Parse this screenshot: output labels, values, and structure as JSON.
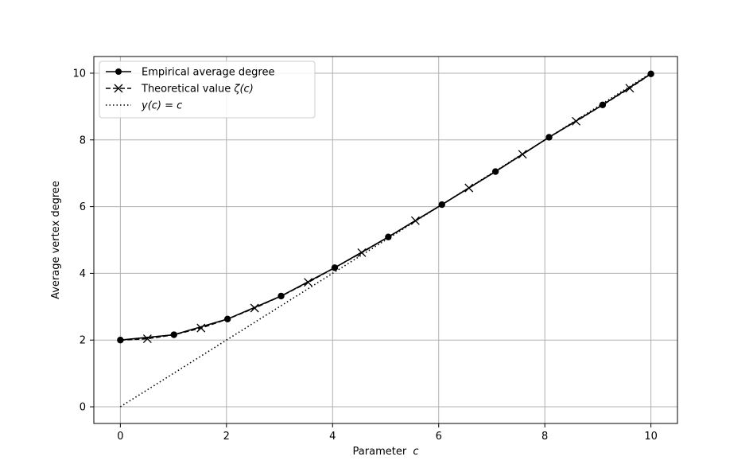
{
  "chart_data": {
    "type": "line",
    "title": "",
    "xlabel": "Parameter",
    "xlabel_var": "c",
    "ylabel": "Average vertex degree",
    "xlim": [
      -0.5,
      10.5
    ],
    "ylim": [
      -0.5,
      10.5
    ],
    "x_ticks": [
      0,
      2,
      4,
      6,
      8,
      10
    ],
    "y_ticks": [
      0,
      2,
      4,
      6,
      8,
      10
    ],
    "grid": true,
    "legend_position": "top-left",
    "series": [
      {
        "name": "Empirical average degree",
        "style": "solid",
        "marker": "circle",
        "color": "#000000",
        "x": [
          0,
          1.01,
          2.02,
          3.03,
          4.04,
          5.05,
          6.06,
          7.07,
          8.08,
          9.09,
          10
        ],
        "y": [
          2.0,
          2.16,
          2.63,
          3.32,
          4.17,
          5.09,
          6.06,
          7.05,
          8.08,
          9.05,
          9.98
        ]
      },
      {
        "name": "Theoretical value ζ(c)",
        "name_main": "Theoretical value ",
        "name_math": "ζ(c)",
        "style": "dashed",
        "marker": "x",
        "color": "#000000",
        "x": [
          0,
          0.51,
          1.01,
          1.52,
          2.02,
          2.53,
          3.03,
          3.54,
          4.04,
          4.55,
          5.05,
          5.56,
          6.06,
          6.57,
          7.07,
          7.58,
          8.08,
          8.59,
          9.09,
          9.6,
          10
        ],
        "y": [
          2.0,
          2.04,
          2.16,
          2.36,
          2.63,
          2.96,
          3.32,
          3.73,
          4.17,
          4.62,
          5.09,
          5.58,
          6.06,
          6.56,
          7.05,
          7.57,
          8.08,
          8.56,
          9.05,
          9.55,
          9.98
        ]
      },
      {
        "name": "y(c) = c",
        "style": "dotted",
        "marker": "none",
        "color": "#000000",
        "x": [
          0,
          10
        ],
        "y": [
          0,
          10
        ]
      }
    ]
  }
}
